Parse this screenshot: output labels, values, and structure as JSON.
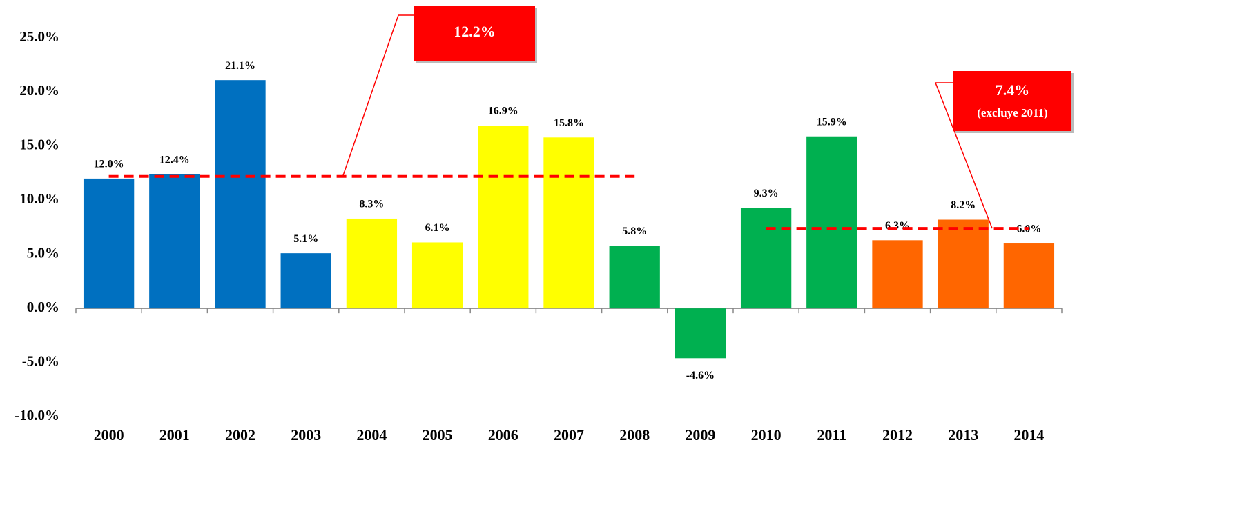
{
  "chart_data": {
    "type": "bar",
    "categories": [
      "2000",
      "2001",
      "2002",
      "2003",
      "2004",
      "2005",
      "2006",
      "2007",
      "2008",
      "2009",
      "2010",
      "2011",
      "2012",
      "2013",
      "2014"
    ],
    "values": [
      12.0,
      12.4,
      21.1,
      5.1,
      8.3,
      6.1,
      16.9,
      15.8,
      5.8,
      -4.6,
      9.3,
      15.9,
      6.3,
      8.2,
      6.0
    ],
    "value_labels": [
      "12.0%",
      "12.4%",
      "21.1%",
      "5.1%",
      "8.3%",
      "6.1%",
      "16.9%",
      "15.8%",
      "5.8%",
      "-4.6%",
      "9.3%",
      "15.9%",
      "6.3%",
      "8.2%",
      "6.0%"
    ],
    "colors": [
      "#0070c0",
      "#0070c0",
      "#0070c0",
      "#0070c0",
      "#ffff00",
      "#ffff00",
      "#ffff00",
      "#ffff00",
      "#00b050",
      "#00b050",
      "#00b050",
      "#00b050",
      "#ff6600",
      "#ff6600",
      "#ff6600"
    ],
    "ylim": [
      -10,
      25
    ],
    "yticks": [
      {
        "value": -10,
        "label": "-10.0%"
      },
      {
        "value": -5,
        "label": "-5.0%"
      },
      {
        "value": 0,
        "label": "0.0%"
      },
      {
        "value": 5,
        "label": "5.0%"
      },
      {
        "value": 10,
        "label": "10.0%"
      },
      {
        "value": 15,
        "label": "15.0%"
      },
      {
        "value": 20,
        "label": "20.0%"
      },
      {
        "value": 25,
        "label": "25.0%"
      }
    ],
    "reference_lines": [
      {
        "value": 12.2,
        "label": "12.2%",
        "span": [
          "2000",
          "2008"
        ],
        "color": "#ff0000"
      },
      {
        "value": 7.4,
        "label": "7.4%",
        "note": "(excluye 2011)",
        "span": [
          "2010",
          "2014"
        ],
        "color": "#ff0000"
      }
    ]
  }
}
